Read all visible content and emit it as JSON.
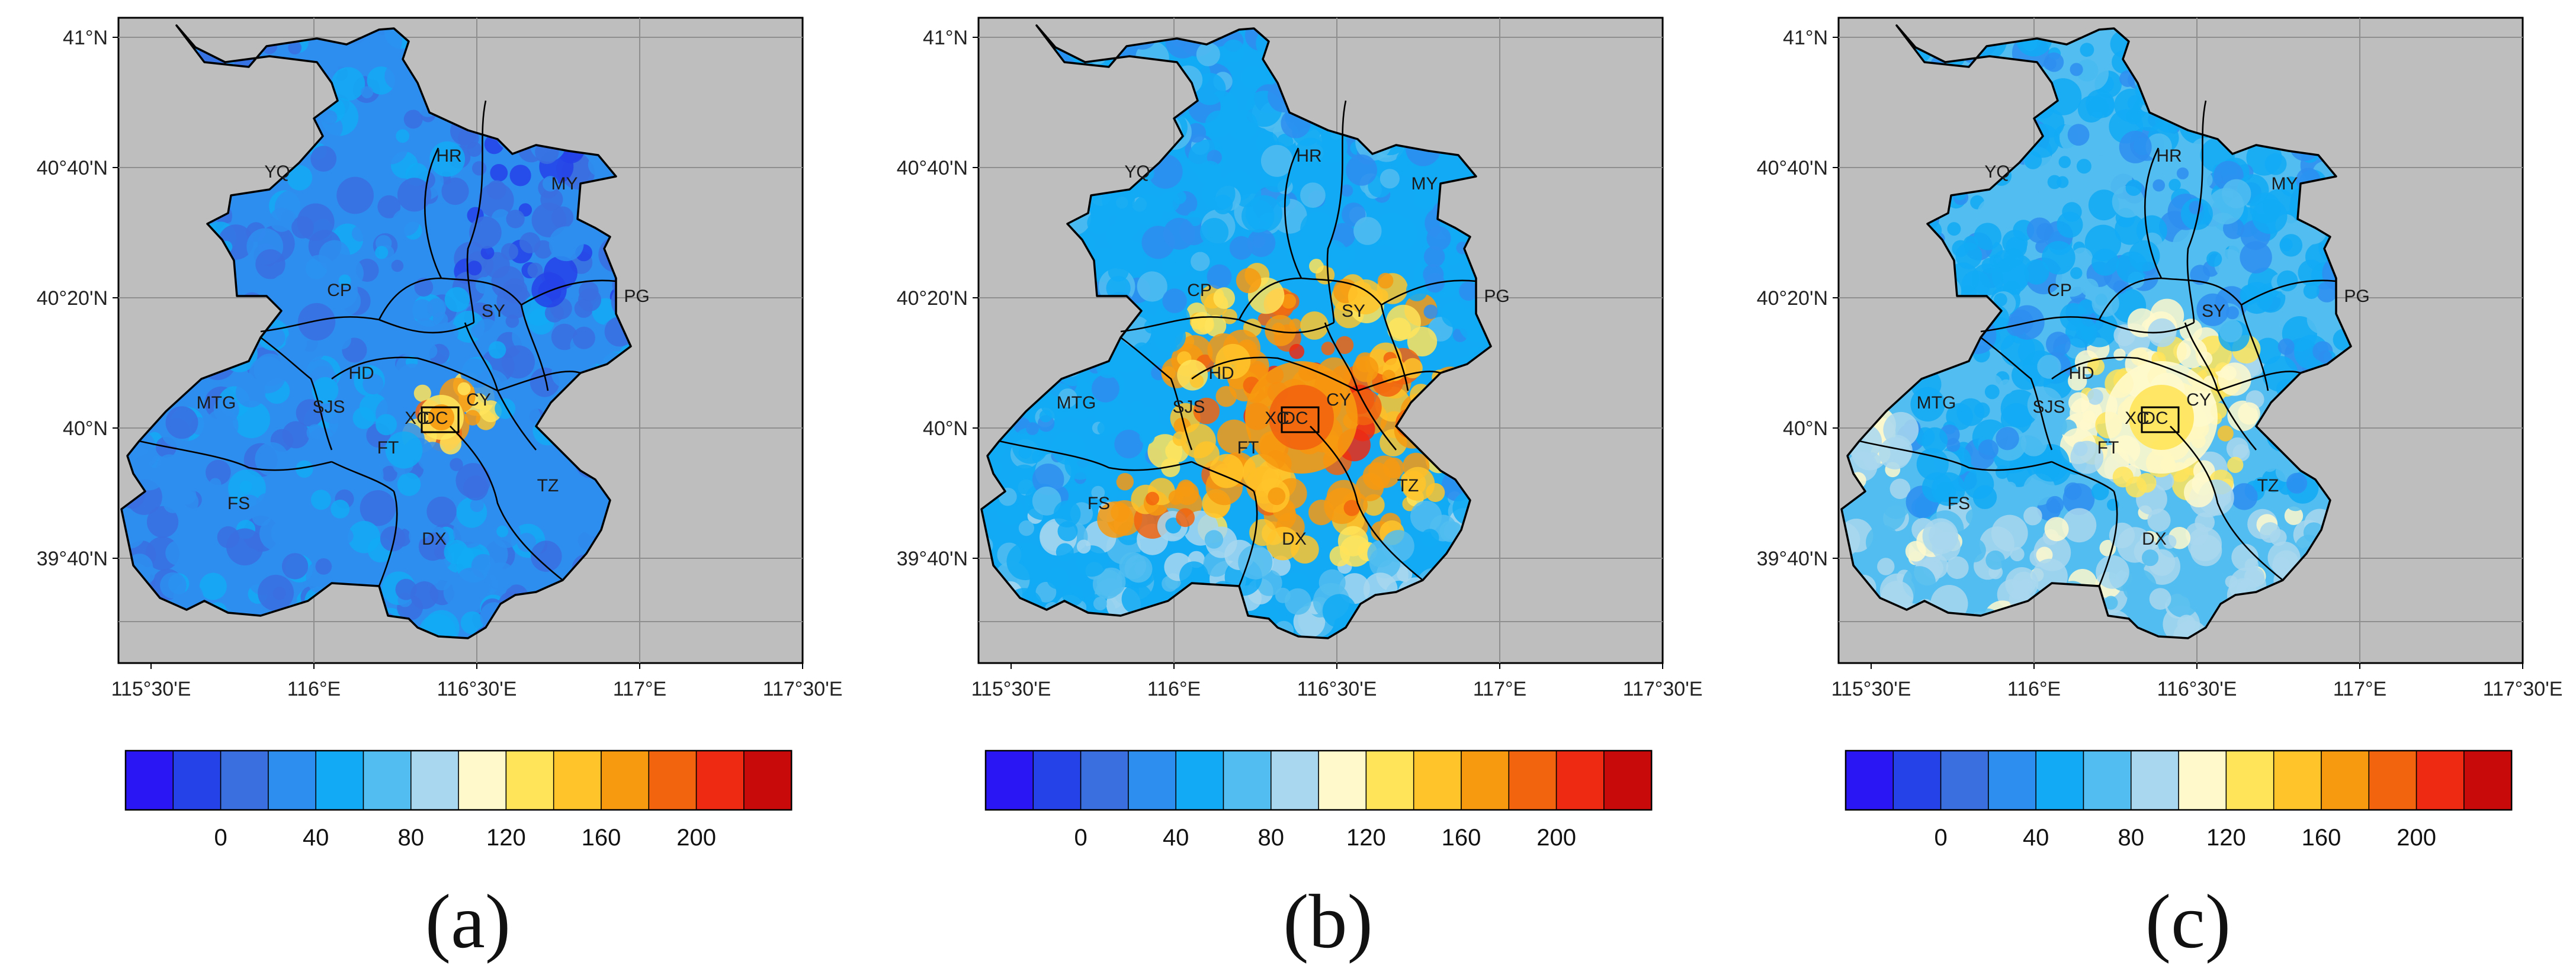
{
  "map": {
    "lon_labels": [
      "115°30'E",
      "116°E",
      "116°30'E",
      "117°E",
      "117°30'E"
    ],
    "lat_labels": [
      "41°N",
      "40°40'N",
      "40°20'N",
      "40°N",
      "39°40'N"
    ],
    "districts": [
      "YQ",
      "HR",
      "MY",
      "CP",
      "SY",
      "PG",
      "HD",
      "MTG",
      "SJS",
      "XC",
      "DC",
      "CY",
      "FT",
      "FS",
      "DX",
      "TZ"
    ],
    "background_color": "#bebebe",
    "land_base_colors": [
      "#3d7fe6",
      "#55a8f0",
      "#7ec4f0"
    ]
  },
  "colorbar": {
    "colors": [
      "#2a16f5",
      "#2542e8",
      "#3a6fe0",
      "#2e8ef0",
      "#12aaf5",
      "#52bdf0",
      "#a8d7ef",
      "#fff9cc",
      "#ffe45a",
      "#ffc42a",
      "#f79a10",
      "#f2640e",
      "#ee2a12",
      "#c80a0a"
    ],
    "tick_labels": [
      "0",
      "40",
      "80",
      "120",
      "160",
      "200"
    ]
  },
  "panels": [
    {
      "caption": "(a)"
    },
    {
      "caption": "(b)"
    },
    {
      "caption": "(c)"
    }
  ]
}
